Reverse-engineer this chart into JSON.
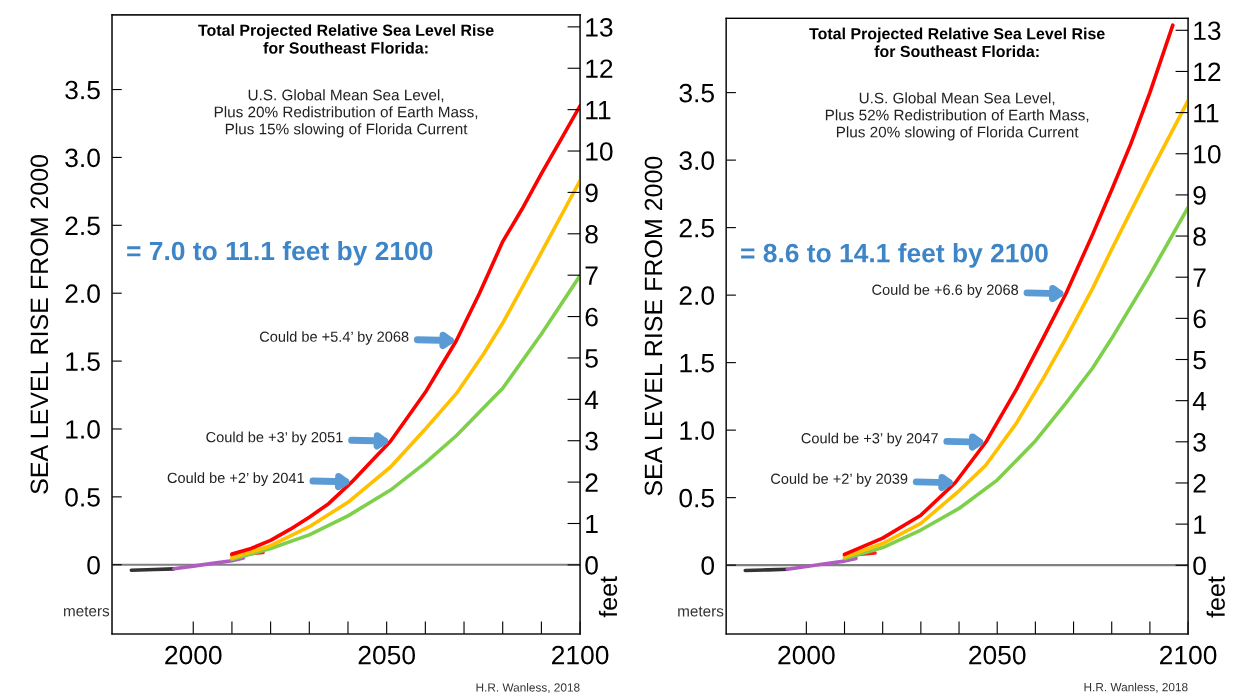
{
  "chart_data": [
    {
      "type": "line",
      "title": "Total Projected Relative Sea Level Rise\nfor Southeast Florida:",
      "subtitle": "U.S. Global Mean Sea Level,\nPlus 20% Redistribution of Earth Mass,\nPlus 15% slowing of Florida Current",
      "ylabel": "SEA LEVEL RISE FROM 2000",
      "y2label": "feet",
      "xlim": [
        1979,
        2100
      ],
      "xticks": [
        2000,
        {
          "value": 2010,
          "label": null
        },
        {
          "value": 2020,
          "label": null
        },
        {
          "value": 2030,
          "label": null
        },
        {
          "value": 2040,
          "label": null
        },
        2050,
        {
          "value": 2060,
          "label": null
        },
        {
          "value": 2070,
          "label": null
        },
        {
          "value": 2080,
          "label": null
        },
        {
          "value": 2090,
          "label": null
        },
        2100
      ],
      "ylim": [
        -0.51,
        4.05
      ],
      "yticks": [
        0,
        0.5,
        {
          "value": 1,
          "label": "1.0"
        },
        1.5,
        {
          "value": 2,
          "label": "2.0"
        },
        2.5,
        {
          "value": 3,
          "label": "3.0"
        },
        3.5
      ],
      "y2lim": [
        -1.67,
        13.29
      ],
      "y2ticks": [
        0,
        1,
        2,
        3,
        4,
        5,
        6,
        7,
        8,
        9,
        10,
        11,
        12,
        13
      ],
      "ref_lines": [
        {
          "axis": "y",
          "value": 0,
          "color": "#808080"
        }
      ],
      "grid": false,
      "series": [
        {
          "color": "#333333",
          "x": [
            1984,
            1990,
            1995
          ],
          "values": [
            -0.04,
            -0.035,
            -0.03
          ]
        },
        {
          "color": "#b05cc0",
          "x": [
            1995,
            2000,
            2005,
            2010,
            2013
          ],
          "values": [
            -0.03,
            -0.01,
            0.01,
            0.03,
            0.05
          ]
        },
        {
          "color": "#ff2020",
          "x": [
            2010,
            2018
          ],
          "values": [
            0.07,
            0.09
          ]
        },
        {
          "color": "#7ed04b",
          "x": [
            2010,
            2020,
            2030,
            2040,
            2051,
            2060,
            2068,
            2080,
            2090,
            2100
          ],
          "values": [
            0.04,
            0.12,
            0.22,
            0.36,
            0.55,
            0.75,
            0.95,
            1.3,
            1.7,
            2.13
          ]
        },
        {
          "color": "#ffc000",
          "x": [
            2010,
            2020,
            2030,
            2040,
            2051,
            2060,
            2068,
            2075,
            2080,
            2090,
            2100
          ],
          "values": [
            0.05,
            0.14,
            0.28,
            0.46,
            0.72,
            1.0,
            1.26,
            1.55,
            1.78,
            2.3,
            2.83
          ]
        },
        {
          "color": "#ff0000",
          "x": [
            2010,
            2015,
            2020,
            2025,
            2030,
            2035,
            2041,
            2046,
            2051,
            2055,
            2060,
            2064,
            2068,
            2074,
            2080,
            2085,
            2090,
            2095,
            2100
          ],
          "values": [
            0.08,
            0.12,
            0.18,
            0.26,
            0.35,
            0.45,
            0.61,
            0.76,
            0.91,
            1.07,
            1.27,
            1.46,
            1.65,
            2.0,
            2.38,
            2.62,
            2.88,
            3.13,
            3.38
          ]
        }
      ],
      "annotations": [
        "= 7.0 to 11.1 feet by 2100",
        "meters",
        "H.R. Wanless, 2018",
        {
          "text": "Could be +5.4’ by 2068",
          "x": 2068,
          "y": 1.65
        },
        {
          "text": "Could be +3’ by 2051",
          "x": 2051,
          "y": 0.91
        },
        {
          "text": "Could be +2’ by 2041",
          "x": 2041,
          "y": 0.61
        }
      ]
    },
    {
      "type": "line",
      "title": "Total Projected Relative Sea Level Rise\nfor Southeast Florida:",
      "subtitle": "U.S. Global Mean Sea Level,\nPlus 52% Redistribution of Earth Mass,\nPlus 20% slowing of Florida Current",
      "ylabel": "SEA LEVEL RISE FROM 2000",
      "y2label": "feet",
      "xlim": [
        1979,
        2100
      ],
      "xticks": [
        2000,
        {
          "value": 2010,
          "label": null
        },
        {
          "value": 2020,
          "label": null
        },
        {
          "value": 2030,
          "label": null
        },
        {
          "value": 2040,
          "label": null
        },
        2050,
        {
          "value": 2060,
          "label": null
        },
        {
          "value": 2070,
          "label": null
        },
        {
          "value": 2080,
          "label": null
        },
        {
          "value": 2090,
          "label": null
        },
        2100
      ],
      "ylim": [
        -0.51,
        4.05
      ],
      "yticks": [
        0,
        0.5,
        {
          "value": 1,
          "label": "1.0"
        },
        1.5,
        {
          "value": 2,
          "label": "2.0"
        },
        2.5,
        {
          "value": 3,
          "label": "3.0"
        },
        3.5
      ],
      "y2lim": [
        -1.67,
        13.29
      ],
      "y2ticks": [
        0,
        1,
        2,
        3,
        4,
        5,
        6,
        7,
        8,
        9,
        10,
        11,
        12,
        13
      ],
      "ref_lines": [
        {
          "axis": "y",
          "value": 0,
          "color": "#808080"
        }
      ],
      "grid": false,
      "series": [
        {
          "color": "#333333",
          "x": [
            1984,
            1990,
            1995
          ],
          "values": [
            -0.04,
            -0.035,
            -0.03
          ]
        },
        {
          "color": "#b05cc0",
          "x": [
            1995,
            2000,
            2005,
            2010,
            2013
          ],
          "values": [
            -0.03,
            -0.01,
            0.01,
            0.03,
            0.05
          ]
        },
        {
          "color": "#ff2020",
          "x": [
            2010,
            2018
          ],
          "values": [
            0.07,
            0.09
          ]
        },
        {
          "color": "#7ed04b",
          "x": [
            2010,
            2020,
            2030,
            2040,
            2050,
            2060,
            2068,
            2075,
            2080,
            2090,
            2100
          ],
          "values": [
            0.05,
            0.13,
            0.26,
            0.42,
            0.63,
            0.92,
            1.2,
            1.46,
            1.68,
            2.15,
            2.65
          ]
        },
        {
          "color": "#ffc000",
          "x": [
            2010,
            2020,
            2030,
            2040,
            2047,
            2055,
            2062,
            2068,
            2075,
            2080,
            2090,
            2100
          ],
          "values": [
            0.06,
            0.16,
            0.31,
            0.55,
            0.74,
            1.05,
            1.38,
            1.68,
            2.05,
            2.34,
            2.9,
            3.44
          ]
        },
        {
          "color": "#ff0000",
          "x": [
            2010,
            2020,
            2030,
            2039,
            2047,
            2055,
            2062,
            2068,
            2075,
            2080,
            2085,
            2090,
            2096
          ],
          "values": [
            0.08,
            0.2,
            0.37,
            0.61,
            0.91,
            1.3,
            1.68,
            2.01,
            2.45,
            2.78,
            3.12,
            3.5,
            4.0
          ]
        }
      ],
      "annotations": [
        "= 8.6 to 14.1 feet by 2100",
        "meters",
        "H.R. Wanless, 2018",
        {
          "text": "Could be +6.6 by 2068",
          "x": 2068,
          "y": 2.01
        },
        {
          "text": "Could be +3’ by 2047",
          "x": 2047,
          "y": 0.91
        },
        {
          "text": "Could be +2’ by 2039",
          "x": 2039,
          "y": 0.61
        }
      ]
    }
  ]
}
